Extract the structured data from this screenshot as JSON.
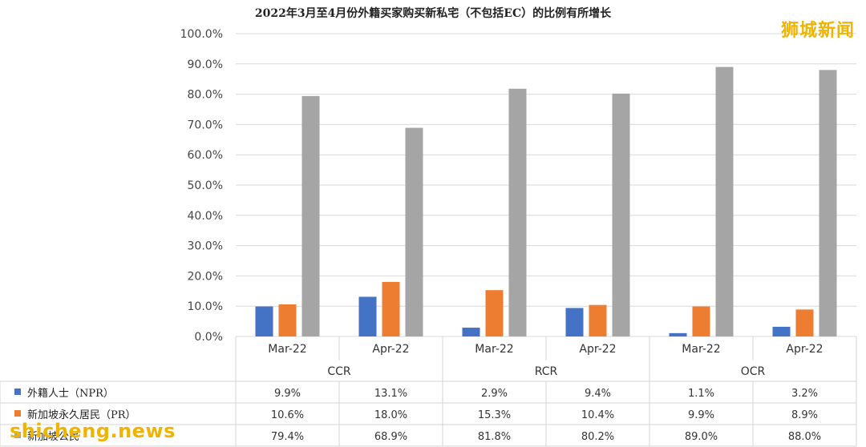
{
  "chart_data": {
    "type": "bar",
    "title": "2022年3月至4月份外籍买家购买新私宅（不包括EC）的比例有所增长",
    "regions": [
      "CCR",
      "RCR",
      "OCR"
    ],
    "categories": [
      "Mar-22",
      "Apr-22",
      "Mar-22",
      "Apr-22",
      "Mar-22",
      "Apr-22"
    ],
    "ylim": [
      0,
      100
    ],
    "yticks": [
      0,
      10,
      20,
      30,
      40,
      50,
      60,
      70,
      80,
      90,
      100
    ],
    "ytick_labels": [
      "0.0%",
      "10.0%",
      "20.0%",
      "30.0%",
      "40.0%",
      "50.0%",
      "60.0%",
      "70.0%",
      "80.0%",
      "90.0%",
      "100.0%"
    ],
    "grid": true,
    "series": [
      {
        "name": "外籍人士（NPR）",
        "color": "#4472c4",
        "values": [
          9.9,
          13.1,
          2.9,
          9.4,
          1.1,
          3.2
        ],
        "labels": [
          "9.9%",
          "13.1%",
          "2.9%",
          "9.4%",
          "1.1%",
          "3.2%"
        ]
      },
      {
        "name": "新加坡永久居民（PR）",
        "color": "#ed7d31",
        "values": [
          10.6,
          18.0,
          15.3,
          10.4,
          9.9,
          8.9
        ],
        "labels": [
          "10.6%",
          "18.0%",
          "15.3%",
          "10.4%",
          "9.9%",
          "8.9%"
        ]
      },
      {
        "name": "新加坡公民",
        "color": "#a5a5a5",
        "values": [
          79.4,
          68.9,
          81.8,
          80.2,
          89.0,
          88.0
        ],
        "labels": [
          "79.4%",
          "68.9%",
          "81.8%",
          "80.2%",
          "89.0%",
          "88.0%"
        ]
      }
    ]
  },
  "watermarks": {
    "top": "狮城新闻",
    "bottom": "shicheng.news"
  }
}
